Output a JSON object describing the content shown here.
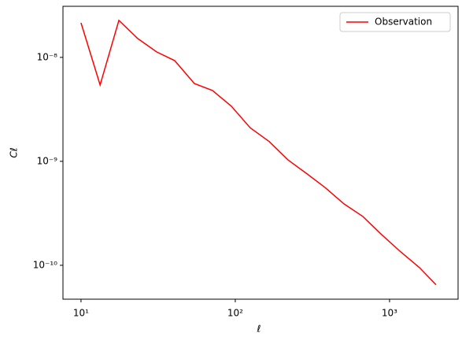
{
  "chart_data": {
    "type": "line",
    "xlabel": "ℓ",
    "ylabel": "Cℓ",
    "xscale": "log",
    "yscale": "log",
    "xlim": [
      7.64,
      2780
    ],
    "ylim": [
      4.72e-11,
      3.1e-08
    ],
    "xticks": [
      {
        "value": 10,
        "label": "10¹"
      },
      {
        "value": 100,
        "label": "10²"
      },
      {
        "value": 1000,
        "label": "10³"
      }
    ],
    "yticks": [
      {
        "value": 1e-10,
        "label": "10⁻¹⁰"
      },
      {
        "value": 1e-09,
        "label": "10⁻⁹"
      },
      {
        "value": 1e-08,
        "label": "10⁻⁸"
      }
    ],
    "legend": "upper right",
    "x": [
      10,
      13.3,
      17.6,
      23.3,
      30.9,
      40.5,
      54.3,
      71.1,
      94.2,
      125,
      166,
      220,
      291,
      382,
      506,
      671,
      889,
      1178,
      1563,
      2000
    ],
    "series": [
      {
        "name": "Observation",
        "color": "#ff0000",
        "values": [
          2.15e-08,
          5.43e-09,
          2.27e-08,
          1.52e-08,
          1.13e-08,
          9.3e-09,
          5.6e-09,
          4.8e-09,
          3.4e-09,
          2.1e-09,
          1.55e-09,
          1.03e-09,
          7.6e-10,
          5.6e-10,
          3.9e-10,
          2.95e-10,
          1.97e-10,
          1.35e-10,
          9.5e-11,
          6.5e-11
        ]
      }
    ]
  }
}
